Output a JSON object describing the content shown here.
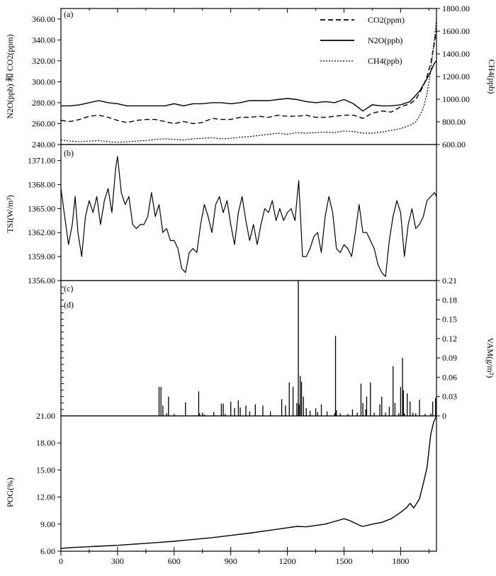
{
  "chart_data": [
    {
      "type": "line",
      "panel_label": "(a)",
      "x_range": [
        0,
        1990
      ],
      "ylabel": "N2O(ppb) 和 CO2(ppm)",
      "y2label": "CH4(ppb)",
      "ylim": [
        240,
        370
      ],
      "y2lim": [
        600,
        1800
      ],
      "yticks": [
        "240.00",
        "260.00",
        "280.00",
        "300.00",
        "320.00",
        "340.00",
        "360.00"
      ],
      "y2ticks": [
        "600.00",
        "800.00",
        "1000.00",
        "1200.00",
        "1400.00",
        "1600.00",
        "1800.00"
      ],
      "legend_position": "top-right",
      "series": [
        {
          "name": "CO2(ppm)",
          "axis": "left",
          "style": "dashed",
          "x": [
            0,
            50,
            100,
            150,
            200,
            250,
            300,
            350,
            400,
            450,
            500,
            550,
            600,
            650,
            700,
            750,
            800,
            850,
            900,
            950,
            1000,
            1050,
            1100,
            1150,
            1200,
            1250,
            1300,
            1350,
            1400,
            1450,
            1500,
            1550,
            1600,
            1650,
            1700,
            1750,
            1800,
            1850,
            1880,
            1900,
            1920,
            1940,
            1960,
            1980,
            1990
          ],
          "values": [
            263,
            262,
            264,
            267,
            268,
            266,
            263,
            261,
            263,
            264,
            264,
            262,
            260,
            262,
            260,
            261,
            265,
            264,
            264,
            266,
            266,
            267,
            266,
            268,
            267,
            267,
            268,
            266,
            266,
            267,
            268,
            268,
            265,
            270,
            272,
            271,
            276,
            279,
            283,
            289,
            296,
            305,
            318,
            338,
            350
          ]
        },
        {
          "name": "N2O(ppb)",
          "axis": "left",
          "style": "solid",
          "x": [
            0,
            50,
            100,
            150,
            200,
            250,
            300,
            350,
            400,
            450,
            500,
            550,
            600,
            650,
            700,
            750,
            800,
            850,
            900,
            950,
            1000,
            1050,
            1100,
            1150,
            1200,
            1250,
            1300,
            1350,
            1400,
            1450,
            1500,
            1550,
            1600,
            1650,
            1700,
            1750,
            1800,
            1850,
            1880,
            1900,
            1920,
            1940,
            1960,
            1980,
            1990
          ],
          "values": [
            277,
            277,
            278,
            280,
            282,
            280,
            279,
            277,
            277,
            277,
            277,
            277,
            279,
            277,
            279,
            279,
            280,
            280,
            279,
            280,
            282,
            282,
            282,
            283,
            284,
            283,
            281,
            280,
            281,
            280,
            283,
            279,
            272,
            278,
            277,
            277,
            278,
            281,
            287,
            291,
            297,
            303,
            310,
            318,
            320
          ]
        },
        {
          "name": "CH4(ppb)",
          "axis": "right",
          "style": "dotted",
          "x": [
            0,
            50,
            100,
            150,
            200,
            250,
            300,
            350,
            400,
            450,
            500,
            550,
            600,
            650,
            700,
            750,
            800,
            850,
            900,
            950,
            1000,
            1050,
            1100,
            1150,
            1200,
            1250,
            1300,
            1350,
            1400,
            1450,
            1500,
            1550,
            1600,
            1650,
            1700,
            1750,
            1800,
            1850,
            1880,
            1900,
            1920,
            1940,
            1960,
            1980,
            1990
          ],
          "values": [
            640,
            630,
            625,
            630,
            635,
            625,
            620,
            625,
            630,
            635,
            645,
            650,
            645,
            640,
            650,
            655,
            660,
            650,
            655,
            665,
            670,
            680,
            690,
            700,
            690,
            705,
            700,
            705,
            710,
            705,
            720,
            715,
            700,
            700,
            710,
            725,
            740,
            770,
            800,
            850,
            920,
            1050,
            1250,
            1550,
            1700
          ]
        }
      ]
    },
    {
      "type": "line",
      "panel_label": "(b)",
      "x_range": [
        0,
        1990
      ],
      "ylabel": "TSI(W/m²)",
      "ylim": [
        1356,
        1373
      ],
      "yticks": [
        "1356.00",
        "1359.00",
        "1362.00",
        "1365.00",
        "1368.00",
        "1371.00"
      ],
      "series": [
        {
          "name": "TSI",
          "x": [
            0,
            20,
            40,
            60,
            75,
            90,
            110,
            130,
            150,
            170,
            190,
            210,
            230,
            250,
            270,
            290,
            300,
            320,
            340,
            360,
            380,
            400,
            420,
            440,
            460,
            480,
            500,
            520,
            540,
            560,
            580,
            600,
            620,
            640,
            660,
            680,
            700,
            720,
            740,
            760,
            780,
            800,
            820,
            840,
            860,
            880,
            900,
            920,
            940,
            960,
            980,
            1000,
            1020,
            1040,
            1060,
            1080,
            1100,
            1120,
            1140,
            1160,
            1180,
            1200,
            1220,
            1240,
            1260,
            1280,
            1300,
            1320,
            1340,
            1360,
            1380,
            1400,
            1420,
            1440,
            1460,
            1480,
            1500,
            1520,
            1540,
            1560,
            1580,
            1600,
            1620,
            1640,
            1660,
            1680,
            1700,
            1720,
            1740,
            1760,
            1780,
            1800,
            1820,
            1840,
            1860,
            1880,
            1900,
            1920,
            1940,
            1960,
            1980,
            1990
          ],
          "values": [
            1367.5,
            1364,
            1360.5,
            1363,
            1366.5,
            1362,
            1359,
            1364,
            1366,
            1364.5,
            1366.5,
            1363,
            1366,
            1367.5,
            1364.5,
            1370,
            1371.5,
            1367,
            1365.5,
            1366.5,
            1363,
            1362.5,
            1363,
            1363,
            1364,
            1367,
            1364,
            1365.5,
            1362,
            1362.5,
            1361,
            1361,
            1360,
            1357.5,
            1357,
            1359.5,
            1360,
            1359.5,
            1363,
            1365.5,
            1364,
            1362,
            1365.5,
            1366.5,
            1364.5,
            1366,
            1363,
            1360.5,
            1364.5,
            1366.5,
            1363.5,
            1361,
            1363,
            1360.5,
            1363,
            1365,
            1364.5,
            1366,
            1363.5,
            1365,
            1363.5,
            1364.5,
            1365,
            1363.5,
            1368.5,
            1359,
            1359,
            1360,
            1361.5,
            1362,
            1359.5,
            1364,
            1366.5,
            1364.5,
            1360,
            1359.5,
            1360.5,
            1360,
            1359,
            1362,
            1365.5,
            1362,
            1362,
            1361,
            1360,
            1358,
            1357,
            1356.5,
            1361,
            1364,
            1366,
            1364.5,
            1359,
            1363,
            1365,
            1362.5,
            1363,
            1364,
            1366,
            1366.5,
            1367,
            1366.5
          ]
        }
      ]
    },
    {
      "type": "bar",
      "panel_label": "(c)",
      "x_range": [
        0,
        1990
      ],
      "ylabel": "VAM(g/m²)",
      "ylim": [
        0,
        0.21
      ],
      "y2ticks": [
        "0",
        "0.03",
        "0.06",
        "0.09",
        "0.12",
        "0.15",
        "0.18",
        "0.21"
      ],
      "yticks_left": [
        "21.00"
      ],
      "events": {
        "x": [
          520,
          530,
          540,
          560,
          570,
          600,
          660,
          730,
          735,
          750,
          760,
          810,
          850,
          860,
          870,
          900,
          920,
          940,
          950,
          980,
          1000,
          1030,
          1070,
          1110,
          1170,
          1190,
          1210,
          1230,
          1250,
          1258,
          1262,
          1268,
          1275,
          1285,
          1300,
          1320,
          1350,
          1360,
          1380,
          1410,
          1450,
          1455,
          1460,
          1480,
          1520,
          1545,
          1570,
          1590,
          1600,
          1615,
          1620,
          1640,
          1660,
          1690,
          1700,
          1720,
          1740,
          1760,
          1770,
          1790,
          1800,
          1810,
          1815,
          1820,
          1835,
          1850,
          1865,
          1880,
          1900,
          1930,
          1960,
          1970,
          1985
        ],
        "values": [
          0.045,
          0.045,
          0.016,
          0.004,
          0.03,
          0.003,
          0.021,
          0.038,
          0.004,
          0.005,
          0.002,
          0.006,
          0.019,
          0.019,
          0.003,
          0.022,
          0.012,
          0.024,
          0.013,
          0.016,
          0.007,
          0.018,
          0.016,
          0.007,
          0.026,
          0.016,
          0.052,
          0.045,
          0.02,
          0.21,
          0.018,
          0.062,
          0.053,
          0.03,
          0.012,
          0.008,
          0.012,
          0.006,
          0.018,
          0.007,
          0.004,
          0.124,
          0.009,
          0.004,
          0.003,
          0.01,
          0.005,
          0.05,
          0.02,
          0.01,
          0.03,
          0.052,
          0.005,
          0.018,
          0.03,
          0.005,
          0.014,
          0.077,
          0.02,
          0.004,
          0.045,
          0.09,
          0.04,
          0.004,
          0.035,
          0.022,
          0.005,
          0.004,
          0.025,
          0.003,
          0.004,
          0.022,
          0.028
        ]
      }
    },
    {
      "type": "line",
      "panel_label": "(d)",
      "xlabel": "",
      "x_range": [
        0,
        1990
      ],
      "xticks": [
        0,
        300,
        600,
        900,
        1200,
        1500,
        1800
      ],
      "xtick_labels": [
        "0",
        "300",
        "600",
        "900",
        "1200",
        "1500",
        "1800"
      ],
      "ylabel": "POG(%)",
      "ylim": [
        6,
        21
      ],
      "yticks": [
        "6.00",
        "9.00",
        "12.00",
        "15.00",
        "18.00"
      ],
      "series": [
        {
          "name": "POG",
          "x": [
            0,
            50,
            100,
            200,
            300,
            400,
            500,
            600,
            700,
            800,
            900,
            1000,
            1100,
            1200,
            1250,
            1300,
            1350,
            1400,
            1450,
            1500,
            1530,
            1560,
            1590,
            1600,
            1650,
            1700,
            1750,
            1800,
            1830,
            1850,
            1870,
            1900,
            1920,
            1940,
            1960,
            1975,
            1990
          ],
          "values": [
            6.3,
            6.4,
            6.45,
            6.55,
            6.65,
            6.8,
            6.95,
            7.1,
            7.3,
            7.5,
            7.75,
            8.0,
            8.3,
            8.6,
            8.75,
            8.7,
            8.85,
            9.0,
            9.3,
            9.6,
            9.4,
            9.1,
            8.8,
            8.75,
            9.0,
            9.2,
            9.6,
            10.3,
            10.8,
            11.3,
            10.8,
            11.8,
            13.5,
            15.3,
            19.0,
            20.3,
            21.0
          ]
        }
      ]
    }
  ]
}
